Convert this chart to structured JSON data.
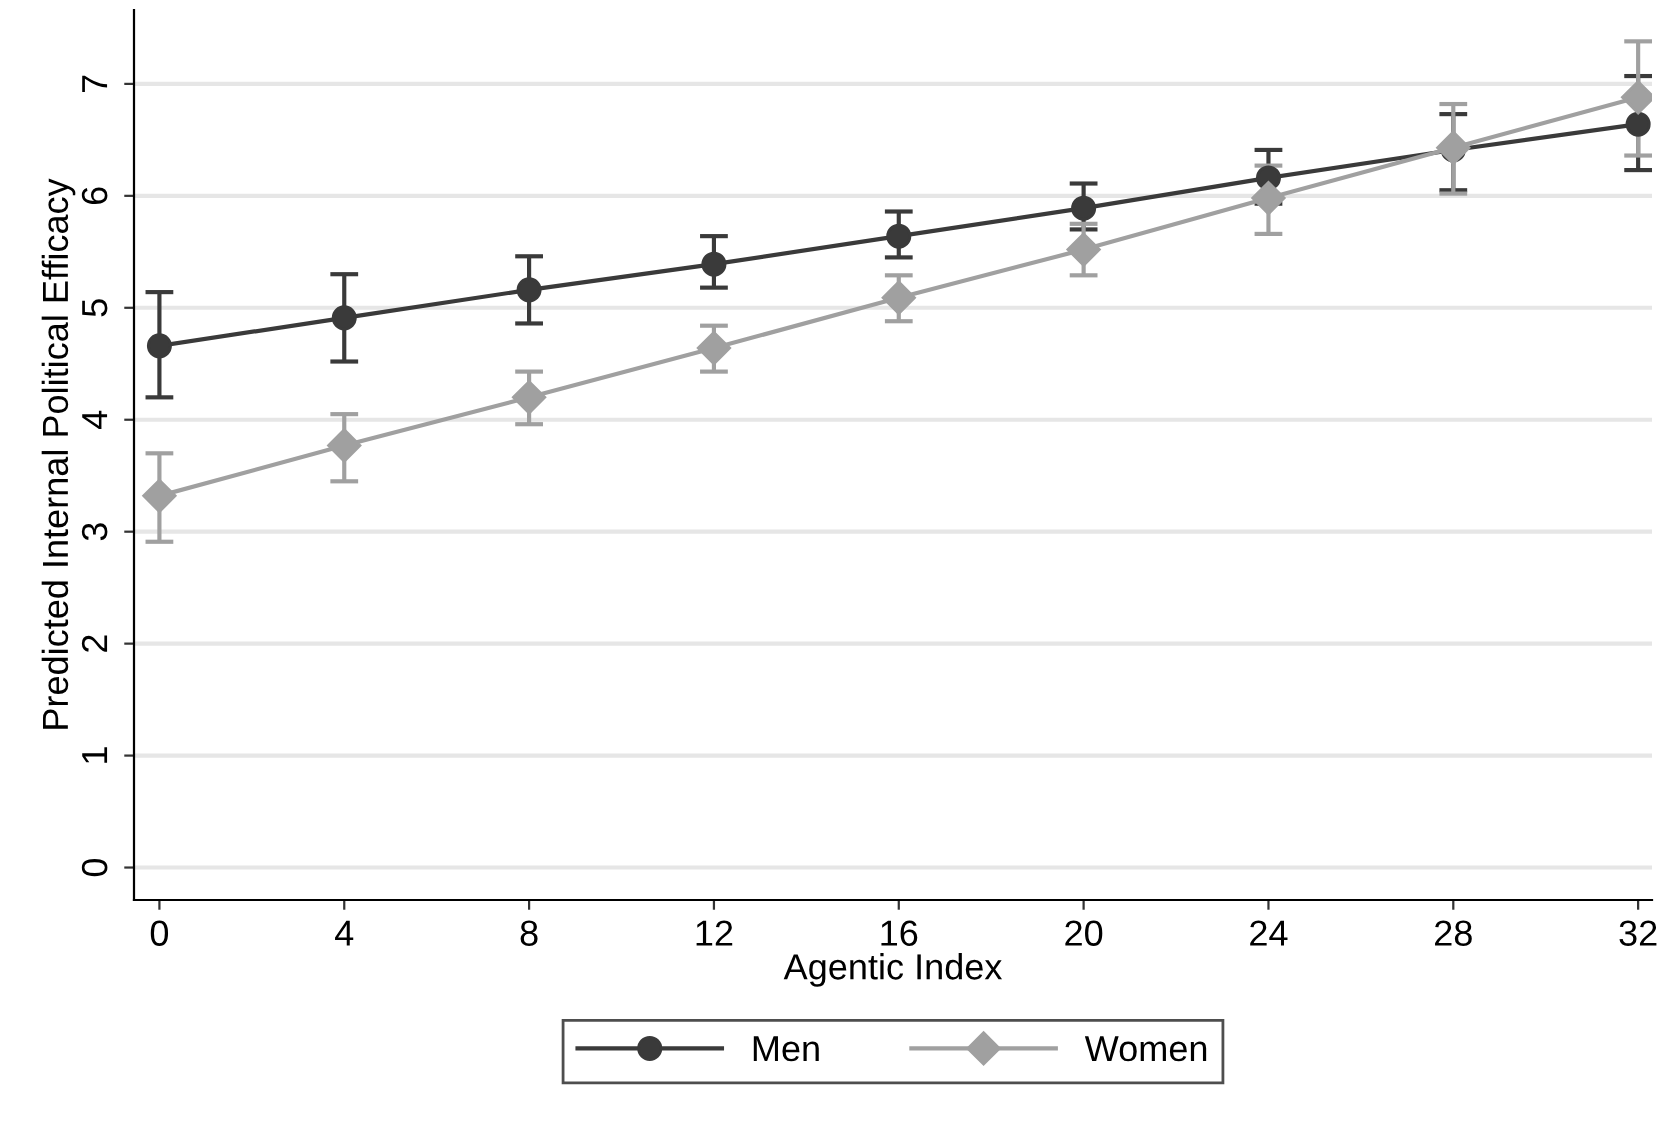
{
  "chart_data": {
    "type": "line",
    "xlabel": "Agentic Index",
    "ylabel": "Predicted Internal Political Efficacy",
    "x": [
      0,
      4,
      8,
      12,
      16,
      20,
      24,
      28,
      32
    ],
    "series": [
      {
        "name": "Men",
        "color": "#3a3a3a",
        "marker": "circle",
        "values": [
          4.66,
          4.91,
          5.16,
          5.39,
          5.64,
          5.89,
          6.16,
          6.41,
          6.64
        ],
        "errors": [
          [
            4.2,
            5.14
          ],
          [
            4.52,
            5.3
          ],
          [
            4.86,
            5.46
          ],
          [
            5.18,
            5.64
          ],
          [
            5.45,
            5.86
          ],
          [
            5.7,
            6.11
          ],
          [
            5.93,
            6.41
          ],
          [
            6.05,
            6.73
          ],
          [
            6.23,
            7.07
          ]
        ]
      },
      {
        "name": "Women",
        "color": "#a0a0a0",
        "marker": "diamond",
        "values": [
          3.32,
          3.77,
          4.2,
          4.64,
          5.09,
          5.52,
          5.98,
          6.43,
          6.88
        ],
        "errors": [
          [
            2.91,
            3.7
          ],
          [
            3.45,
            4.05
          ],
          [
            3.96,
            4.43
          ],
          [
            4.43,
            4.84
          ],
          [
            4.88,
            5.29
          ],
          [
            5.29,
            5.75
          ],
          [
            5.66,
            6.27
          ],
          [
            6.02,
            6.82
          ],
          [
            6.36,
            7.38
          ]
        ]
      }
    ],
    "xlim": [
      -0.55,
      32.3
    ],
    "ylim": [
      -0.29,
      7.66
    ],
    "xticks": [
      0,
      4,
      8,
      12,
      16,
      20,
      24,
      28,
      32
    ],
    "yticks": [
      0,
      1,
      2,
      3,
      4,
      5,
      6,
      7
    ],
    "grid": "y",
    "legend": "bottom"
  }
}
